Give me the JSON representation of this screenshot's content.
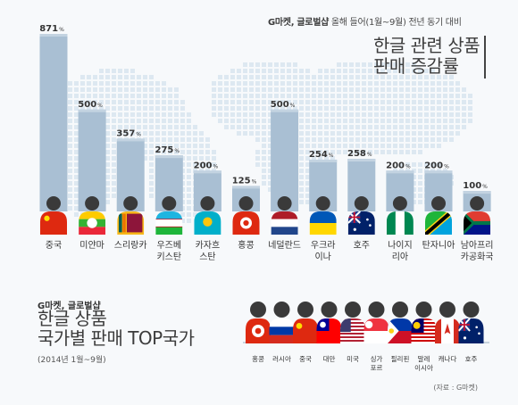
{
  "header": {
    "subtitle_bold": "G마켓, 글로벌샵",
    "subtitle_rest": " 올해 들어(1월~9월) 전년 동기 대비",
    "title_line1": "한글 관련 상품",
    "title_line2": "판매 증감률"
  },
  "bottom": {
    "subtitle": "G마켓, 글로벌샵",
    "title_line1": "한글 상품",
    "title_line2": "국가별 판매 TOP국가",
    "period": "(2014년 1월~9월)",
    "source": "(자료 : G마켓)"
  },
  "colors": {
    "bar": "#a9bfd3",
    "bar_top_highlight": "#c3d3e1",
    "person": "#3a3a3a",
    "map_dots": "#dde8f1",
    "background": "#f7f9fb"
  },
  "chart_data": [
    {
      "type": "bar",
      "title": "한글 관련 상품 판매 증감률",
      "unit": "%",
      "categories": [
        "중국",
        "미얀마",
        "스리랑카",
        "우즈베키스탄",
        "카자흐스탄",
        "홍콩",
        "네덜란드",
        "우크라이나",
        "호주",
        "나이지리아",
        "탄자니아",
        "남아프리카공화국"
      ],
      "category_labels": [
        [
          "중국"
        ],
        [
          "미얀마"
        ],
        [
          "스리랑카"
        ],
        [
          "우즈베",
          "키스탄"
        ],
        [
          "카자흐",
          "스탄"
        ],
        [
          "홍콩"
        ],
        [
          "네덜란드"
        ],
        [
          "우크라",
          "이나"
        ],
        [
          "호주"
        ],
        [
          "나이지",
          "리아"
        ],
        [
          "탄자니아"
        ],
        [
          "남아프리",
          "카공화국"
        ]
      ],
      "values": [
        871,
        500,
        357,
        275,
        200,
        125,
        500,
        254,
        258,
        200,
        200,
        100
      ],
      "value_labels": [
        "871",
        "500",
        "357",
        "275",
        "200",
        "125",
        "500",
        "254",
        "258",
        "200",
        "200",
        "100"
      ],
      "flags": [
        "china",
        "myanmar",
        "sri-lanka",
        "uzbekistan",
        "kazakhstan",
        "hong-kong",
        "netherlands",
        "ukraine",
        "australia",
        "nigeria",
        "tanzania",
        "south-africa"
      ],
      "ylim": [
        0,
        900
      ],
      "grid": false
    },
    {
      "type": "table",
      "title": "한글 상품 국가별 판매 TOP국가",
      "rank_order": [
        "홍콩",
        "러시아",
        "중국",
        "대만",
        "미국",
        "싱가포르",
        "필리핀",
        "말레이시아",
        "캐나다",
        "호주"
      ],
      "rank_labels": [
        [
          "홍콩"
        ],
        [
          "러시아"
        ],
        [
          "중국"
        ],
        [
          "대만"
        ],
        [
          "미국"
        ],
        [
          "싱가",
          "포르"
        ],
        [
          "필리핀"
        ],
        [
          "말레",
          "이시아"
        ],
        [
          "캐나다"
        ],
        [
          "호주"
        ]
      ],
      "flags": [
        "hong-kong",
        "russia",
        "china",
        "taiwan",
        "usa",
        "singapore",
        "philippines",
        "malaysia",
        "canada",
        "australia"
      ]
    }
  ]
}
